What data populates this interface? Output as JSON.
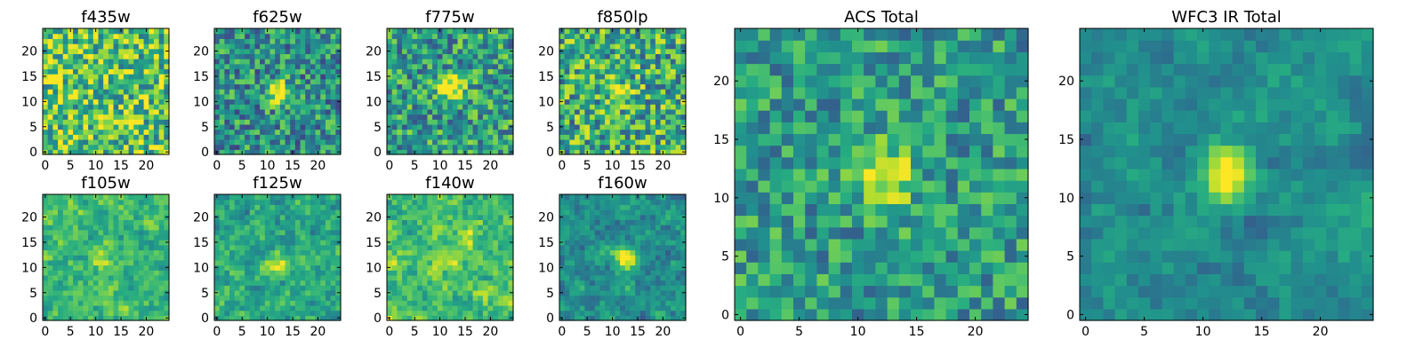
{
  "figure": {
    "colormap": "viridis",
    "colors": {
      "low": "#440154",
      "mid_low": "#3b528b",
      "mid": "#21918c",
      "mid_high": "#5ec962",
      "high": "#fde725",
      "background": "#ffffff",
      "axes": "#000000"
    }
  },
  "chart_data": [
    {
      "type": "heatmap",
      "title": "f435w",
      "grid_size": 25,
      "xticks": [
        "0",
        "5",
        "10",
        "15",
        "20"
      ],
      "yticks": [
        "0",
        "5",
        "10",
        "15",
        "20"
      ],
      "xlim": [
        0,
        24
      ],
      "ylim": [
        0,
        24
      ],
      "source": {
        "x": 12,
        "y": 12,
        "peak": 0,
        "noise": 0.34,
        "base": 0.72,
        "smooth": 0
      }
    },
    {
      "type": "heatmap",
      "title": "f625w",
      "grid_size": 25,
      "xticks": [
        "0",
        "5",
        "10",
        "15",
        "20"
      ],
      "yticks": [
        "0",
        "5",
        "10",
        "15",
        "20"
      ],
      "xlim": [
        0,
        24
      ],
      "ylim": [
        0,
        24
      ],
      "source": {
        "x": 12,
        "y": 12,
        "peak": 0.55,
        "noise": 0.3,
        "base": 0.5,
        "smooth": 0
      }
    },
    {
      "type": "heatmap",
      "title": "f775w",
      "grid_size": 25,
      "xticks": [
        "0",
        "5",
        "10",
        "15",
        "20"
      ],
      "yticks": [
        "0",
        "5",
        "10",
        "15",
        "20"
      ],
      "xlim": [
        0,
        24
      ],
      "ylim": [
        0,
        24
      ],
      "source": {
        "x": 12.5,
        "y": 12.5,
        "peak": 0.55,
        "noise": 0.3,
        "base": 0.55,
        "smooth": 0
      }
    },
    {
      "type": "heatmap",
      "title": "f850lp",
      "grid_size": 25,
      "xticks": [
        "0",
        "5",
        "10",
        "15",
        "20"
      ],
      "yticks": [
        "0",
        "5",
        "10",
        "15",
        "20"
      ],
      "xlim": [
        0,
        24
      ],
      "ylim": [
        0,
        24
      ],
      "source": {
        "x": 11.5,
        "y": 11.5,
        "peak": 0.4,
        "noise": 0.34,
        "base": 0.62,
        "smooth": 0
      }
    },
    {
      "type": "heatmap",
      "title": "f105w",
      "grid_size": 25,
      "xticks": [
        "0",
        "5",
        "10",
        "15",
        "20"
      ],
      "yticks": [
        "0",
        "5",
        "10",
        "15",
        "20"
      ],
      "xlim": [
        0,
        24
      ],
      "ylim": [
        0,
        24
      ],
      "source": {
        "x": 11,
        "y": 11.5,
        "peak": 0.3,
        "noise": 0.28,
        "base": 0.66,
        "smooth": 1
      }
    },
    {
      "type": "heatmap",
      "title": "f125w",
      "grid_size": 25,
      "xticks": [
        "0",
        "5",
        "10",
        "15",
        "20"
      ],
      "yticks": [
        "0",
        "5",
        "10",
        "15",
        "20"
      ],
      "xlim": [
        0,
        24
      ],
      "ylim": [
        0,
        24
      ],
      "source": {
        "x": 12,
        "y": 11,
        "peak": 0.3,
        "noise": 0.3,
        "base": 0.6,
        "smooth": 1
      }
    },
    {
      "type": "heatmap",
      "title": "f140w",
      "grid_size": 25,
      "xticks": [
        "0",
        "5",
        "10",
        "15",
        "20"
      ],
      "yticks": [
        "0",
        "5",
        "10",
        "15",
        "20"
      ],
      "xlim": [
        0,
        24
      ],
      "ylim": [
        0,
        24
      ],
      "source": {
        "x": 12,
        "y": 12,
        "peak": 0.2,
        "noise": 0.3,
        "base": 0.7,
        "smooth": 1
      }
    },
    {
      "type": "heatmap",
      "title": "f160w",
      "grid_size": 25,
      "xticks": [
        "0",
        "5",
        "10",
        "15",
        "20"
      ],
      "yticks": [
        "0",
        "5",
        "10",
        "15",
        "20"
      ],
      "xlim": [
        0,
        24
      ],
      "ylim": [
        0,
        24
      ],
      "source": {
        "x": 12.5,
        "y": 12,
        "peak": 0.55,
        "noise": 0.26,
        "base": 0.5,
        "smooth": 1
      }
    },
    {
      "type": "heatmap",
      "title": "ACS Total",
      "grid_size": 25,
      "xticks": [
        "0",
        "5",
        "10",
        "15",
        "20"
      ],
      "yticks": [
        "0",
        "5",
        "10",
        "15",
        "20"
      ],
      "xlim": [
        0,
        24
      ],
      "ylim": [
        0,
        24
      ],
      "source": {
        "x": 12.5,
        "y": 12,
        "peak": 0.55,
        "noise": 0.24,
        "base": 0.55,
        "smooth": 0
      }
    },
    {
      "type": "heatmap",
      "title": "WFC3 IR Total",
      "grid_size": 25,
      "xticks": [
        "0",
        "5",
        "10",
        "15",
        "20"
      ],
      "yticks": [
        "0",
        "5",
        "10",
        "15",
        "20"
      ],
      "xlim": [
        0,
        24
      ],
      "ylim": [
        0,
        24
      ],
      "source": {
        "x": 12,
        "y": 12,
        "peak": 0.6,
        "noise": 0.2,
        "base": 0.48,
        "smooth": 1
      }
    }
  ]
}
